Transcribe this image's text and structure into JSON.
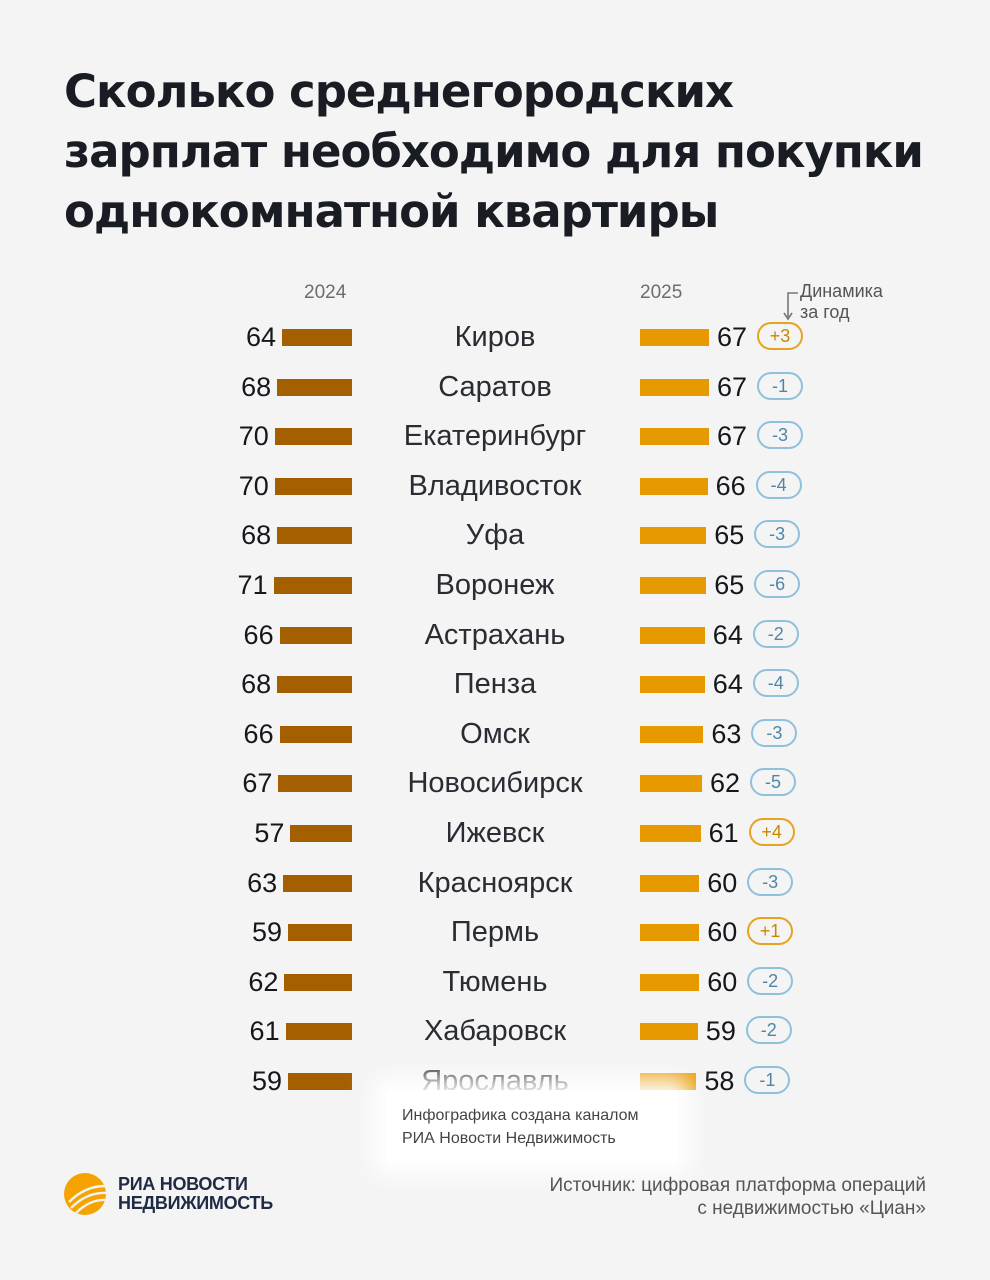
{
  "title": {
    "line1": "Сколько среднегородских",
    "line2": "зарплат необходимо для покупки",
    "line3": "однокомнатной квартиры"
  },
  "headers": {
    "year_2024": "2024",
    "year_2025": "2025",
    "dynamics_line1": "Динамика",
    "dynamics_line2": "за год"
  },
  "colors": {
    "bar_2024": "#a45f00",
    "bar_2025": "#e79a00",
    "badge_up": "#e6a321",
    "badge_down": "#8fc0dc"
  },
  "chart_data": {
    "type": "bar",
    "title": "Сколько среднегородских зарплат необходимо для покупки однокомнатной квартиры",
    "categories": [
      "Киров",
      "Саратов",
      "Екатеринбург",
      "Владивосток",
      "Уфа",
      "Воронеж",
      "Астрахань",
      "Пенза",
      "Омск",
      "Новосибирск",
      "Ижевск",
      "Красноярск",
      "Пермь",
      "Тюмень",
      "Хабаровск",
      "Ярославль"
    ],
    "series": [
      {
        "name": "2024",
        "values": [
          64,
          68,
          70,
          70,
          68,
          71,
          66,
          68,
          66,
          67,
          57,
          63,
          59,
          62,
          61,
          59
        ]
      },
      {
        "name": "2025",
        "values": [
          67,
          67,
          67,
          66,
          65,
          65,
          64,
          64,
          63,
          62,
          61,
          60,
          60,
          60,
          59,
          58
        ]
      }
    ],
    "dynamics": [
      "+3",
      "-1",
      "-3",
      "-4",
      "-3",
      "-6",
      "-2",
      "-4",
      "-3",
      "-5",
      "+4",
      "-3",
      "+1",
      "-2",
      "-2",
      "-1"
    ],
    "xlabel": "",
    "ylabel": ""
  },
  "credit": {
    "line1": "Инфографика создана каналом",
    "line2": "РИА Новости Недвижимость"
  },
  "logo": {
    "line1": "РИА НОВОСТИ",
    "line2": "НЕДВИЖИМОСТЬ",
    "icon": "ria-logo-icon"
  },
  "source": {
    "line1": "Источник: цифровая платформа операций",
    "line2": "с недвижимостью «Циан»"
  }
}
